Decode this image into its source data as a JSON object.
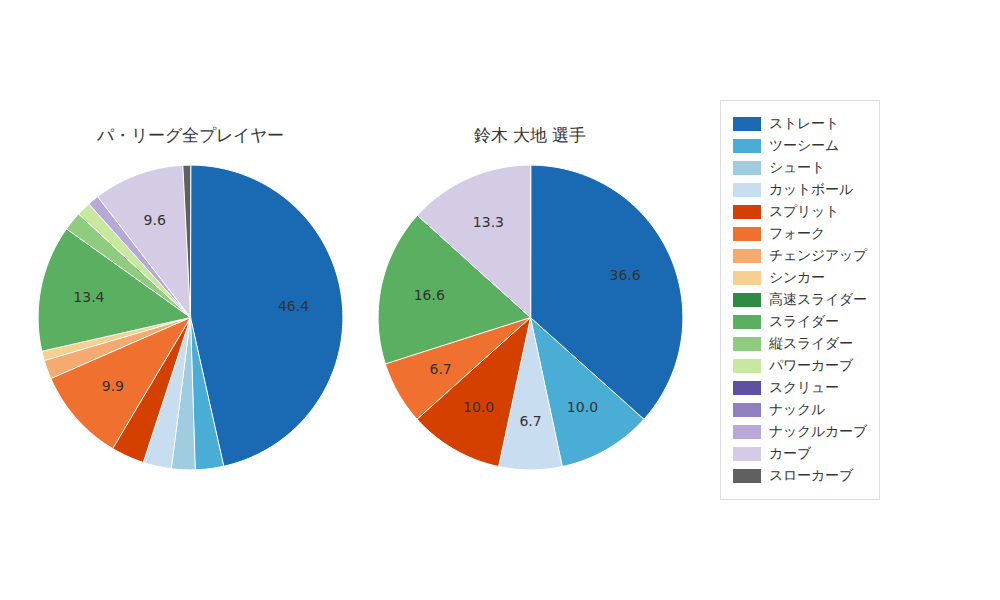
{
  "chart_data": [
    {
      "type": "pie",
      "title": "パ・リーグ全プレイヤー",
      "categories": [
        "ストレート",
        "ツーシーム",
        "シュート",
        "カットボール",
        "スプリット",
        "フォーク",
        "チェンジアップ",
        "シンカー",
        "スライダー",
        "縦スライダー",
        "パワーカーブ",
        "ナックルカーブ",
        "カーブ",
        "スローカーブ"
      ],
      "values": [
        46.4,
        3.0,
        2.5,
        3.0,
        3.5,
        9.9,
        2.0,
        1.0,
        13.4,
        2.0,
        1.5,
        1.2,
        9.6,
        0.8
      ],
      "value_labels": [
        "46.4",
        null,
        null,
        null,
        null,
        "9.9",
        null,
        null,
        "13.4",
        null,
        null,
        null,
        "9.6",
        null
      ],
      "colors": [
        "#1a6ab3",
        "#4aadd6",
        "#a0ccdf",
        "#c8ddef",
        "#d44000",
        "#f07030",
        "#f5aa70",
        "#f5d090",
        "#5ab060",
        "#90cc80",
        "#c8e8a0",
        "#b8a8d8",
        "#d4cce4",
        "#606060"
      ],
      "data_labels": true
    },
    {
      "type": "pie",
      "title": "鈴木 大地 選手",
      "categories": [
        "ストレート",
        "ツーシーム",
        "カットボール",
        "スプリット",
        "フォーク",
        "スライダー",
        "カーブ"
      ],
      "values": [
        36.6,
        10.0,
        6.7,
        10.0,
        6.7,
        16.6,
        13.3
      ],
      "value_labels": [
        "36.6",
        "10.0",
        "6.7",
        "10.0",
        "6.7",
        "16.6",
        "13.3"
      ],
      "colors": [
        "#1a6ab3",
        "#4aadd6",
        "#c8ddef",
        "#d44000",
        "#f07030",
        "#5ab060",
        "#d4cce4"
      ],
      "data_labels": true
    }
  ],
  "legend": "right",
  "series": [
    {
      "name": "ストレート",
      "color": "#1a6ab3"
    },
    {
      "name": "ツーシーム",
      "color": "#4aadd6"
    },
    {
      "name": "シュート",
      "color": "#a0ccdf"
    },
    {
      "name": "カットボール",
      "color": "#c8ddef"
    },
    {
      "name": "スプリット",
      "color": "#d44000"
    },
    {
      "name": "フォーク",
      "color": "#f07030"
    },
    {
      "name": "チェンジアップ",
      "color": "#f5aa70"
    },
    {
      "name": "シンカー",
      "color": "#f5d090"
    },
    {
      "name": "高速スライダー",
      "color": "#2e8b44"
    },
    {
      "name": "スライダー",
      "color": "#5ab060"
    },
    {
      "name": "縦スライダー",
      "color": "#90cc80"
    },
    {
      "name": "パワーカーブ",
      "color": "#c8e8a0"
    },
    {
      "name": "スクリュー",
      "color": "#6050a0"
    },
    {
      "name": "ナックル",
      "color": "#9080c0"
    },
    {
      "name": "ナックルカーブ",
      "color": "#b8a8d8"
    },
    {
      "name": "カーブ",
      "color": "#d4cce4"
    },
    {
      "name": "スローカーブ",
      "color": "#606060"
    }
  ]
}
